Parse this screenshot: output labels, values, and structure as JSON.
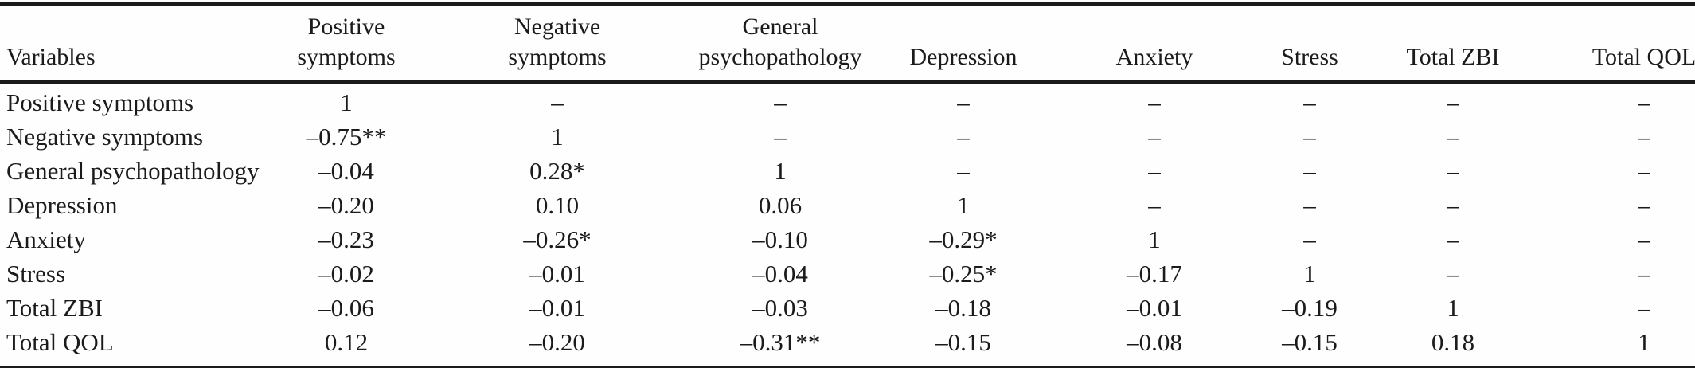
{
  "table": {
    "columns": [
      "Variables",
      "Positive\nsymptoms",
      "Negative\nsymptoms",
      "General\npsychopathology",
      "Depression",
      "Anxiety",
      "Stress",
      "Total ZBI",
      "Total QOL"
    ],
    "rows": [
      {
        "label": "Positive symptoms",
        "values": [
          "1",
          "–",
          "–",
          "–",
          "–",
          "–",
          "–",
          "–"
        ]
      },
      {
        "label": "Negative symptoms",
        "values": [
          "–0.75**",
          "1",
          "–",
          "–",
          "–",
          "–",
          "–",
          "–"
        ]
      },
      {
        "label": "General psychopathology",
        "values": [
          "–0.04",
          "0.28*",
          "1",
          "–",
          "–",
          "–",
          "–",
          "–"
        ]
      },
      {
        "label": "Depression",
        "values": [
          "–0.20",
          "0.10",
          "0.06",
          "1",
          "–",
          "–",
          "–",
          "–"
        ]
      },
      {
        "label": "Anxiety",
        "values": [
          "–0.23",
          "–0.26*",
          "–0.10",
          "–0.29*",
          "1",
          "–",
          "–",
          "–"
        ]
      },
      {
        "label": "Stress",
        "values": [
          "–0.02",
          "–0.01",
          "–0.04",
          "–0.25*",
          "–0.17",
          "1",
          "–",
          "–"
        ]
      },
      {
        "label": "Total ZBI",
        "values": [
          "–0.06",
          "–0.01",
          "–0.03",
          "–0.18",
          "–0.01",
          "–0.19",
          "1",
          "–"
        ]
      },
      {
        "label": "Total QOL",
        "values": [
          "0.12",
          "–0.20",
          "–0.31**",
          "–0.15",
          "–0.08",
          "–0.15",
          "0.18",
          "1"
        ]
      }
    ]
  },
  "colors": {
    "text": "#1b1b1b",
    "rule": "#1b1b1b",
    "background": "#ffffff"
  }
}
